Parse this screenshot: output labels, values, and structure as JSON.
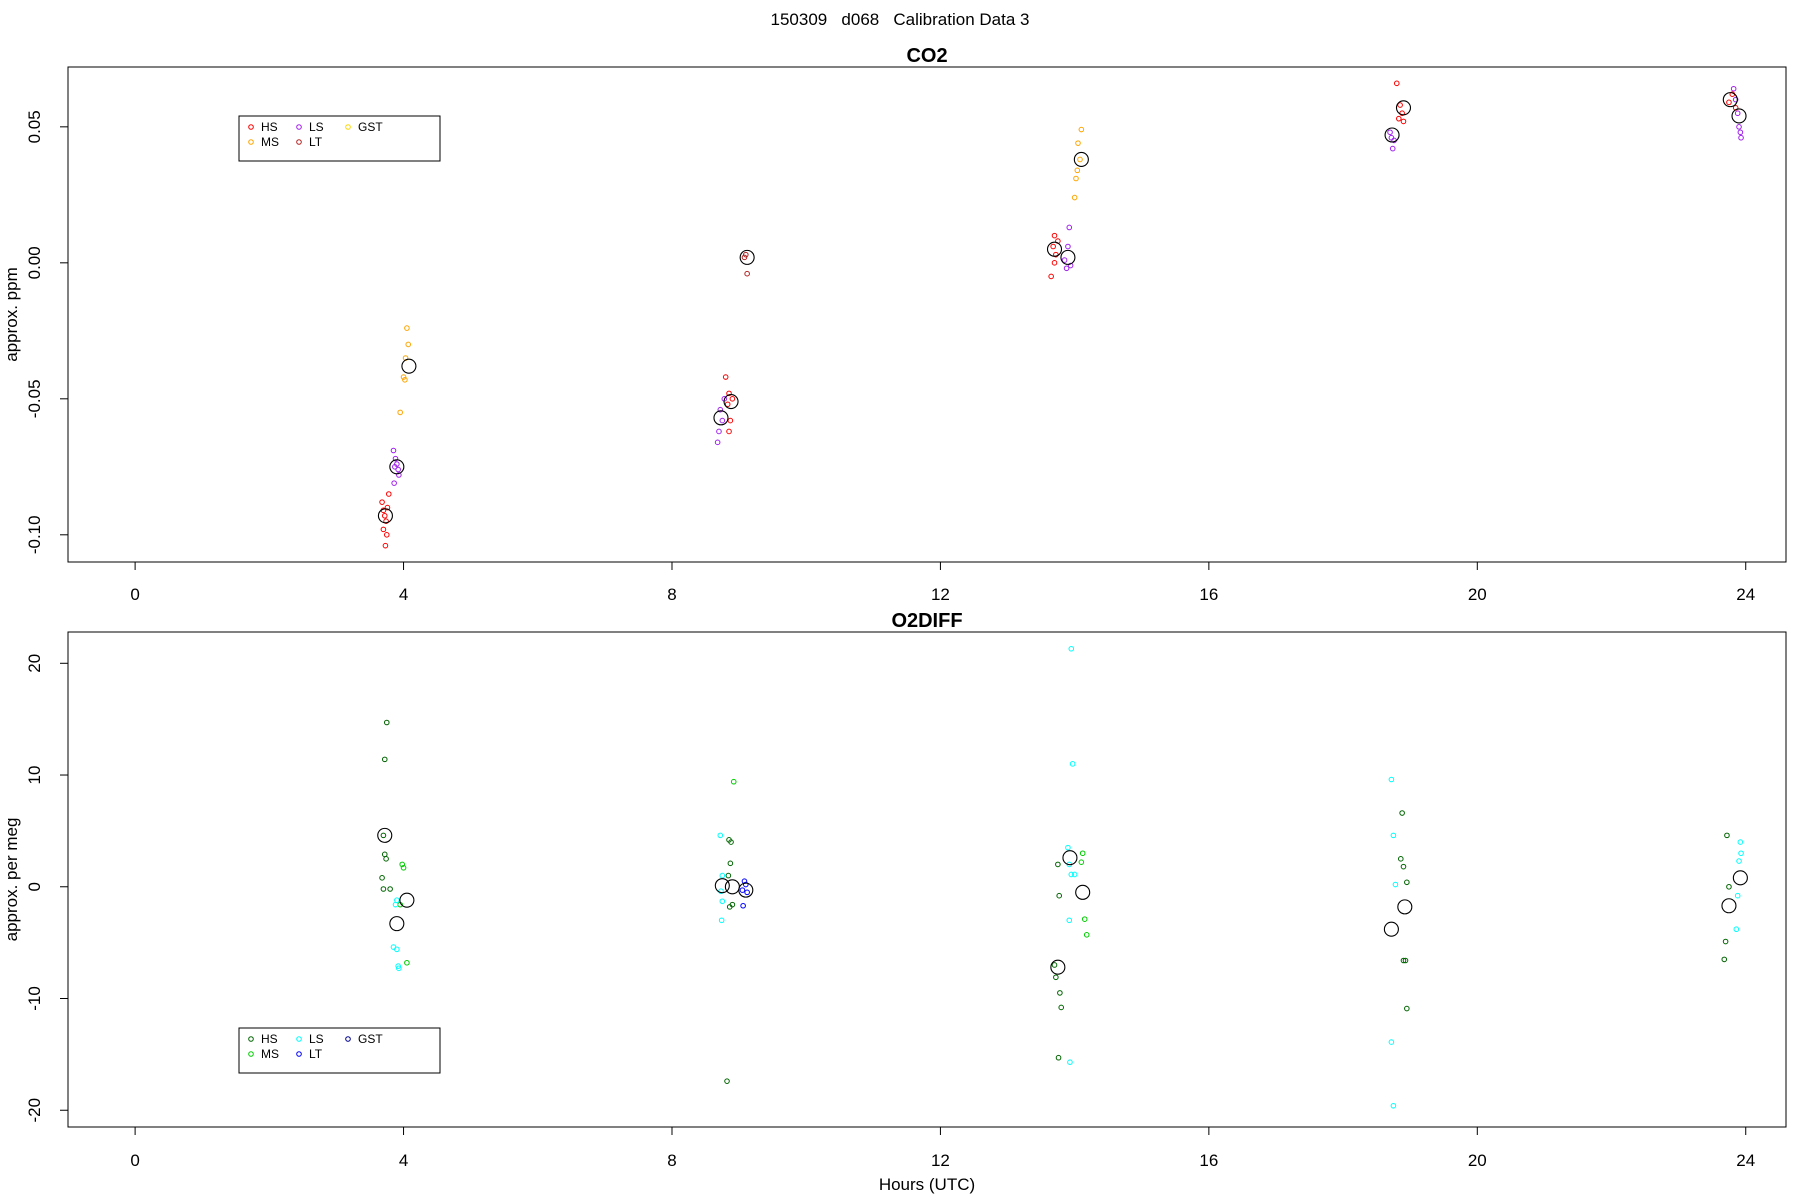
{
  "page": {
    "title": "150309   d068   Calibration Data 3"
  },
  "chart_data": [
    {
      "type": "scatter",
      "title": "CO2",
      "xlabel": "",
      "ylabel": "approx. ppm",
      "xlim": [
        -1,
        24.6
      ],
      "ylim": [
        -0.11,
        0.072
      ],
      "xticks": [
        0,
        4,
        8,
        12,
        16,
        20,
        24
      ],
      "yticks": [
        -0.1,
        -0.05,
        0.0,
        0.05
      ],
      "ytick_labels": [
        "-0.10",
        "-0.05",
        "0.00",
        "0.05"
      ],
      "grid": false,
      "legend": {
        "placement": "top-left",
        "columns": 3,
        "entries": [
          "HS",
          "MS",
          "LS",
          "LT",
          "GST"
        ]
      },
      "series": [
        {
          "name": "HS",
          "color": "#ff0000",
          "marker": "small-circle",
          "points": [
            [
              3.68,
              -0.088
            ],
            [
              3.7,
              -0.091
            ],
            [
              3.72,
              -0.093
            ],
            [
              3.74,
              -0.095
            ],
            [
              3.7,
              -0.098
            ],
            [
              3.75,
              -0.1
            ],
            [
              3.73,
              -0.104
            ],
            [
              3.76,
              -0.09
            ],
            [
              3.78,
              -0.085
            ],
            [
              8.8,
              -0.042
            ],
            [
              8.85,
              -0.048
            ],
            [
              8.9,
              -0.05
            ],
            [
              8.83,
              -0.052
            ],
            [
              8.87,
              -0.058
            ],
            [
              8.85,
              -0.062
            ],
            [
              13.65,
              -0.005
            ],
            [
              13.7,
              0.0
            ],
            [
              13.72,
              0.003
            ],
            [
              13.68,
              0.006
            ],
            [
              13.75,
              0.008
            ],
            [
              13.7,
              0.01
            ],
            [
              18.8,
              0.066
            ],
            [
              18.85,
              0.058
            ],
            [
              18.88,
              0.055
            ],
            [
              18.9,
              0.052
            ],
            [
              18.83,
              0.053
            ],
            [
              23.75,
              0.059
            ],
            [
              23.8,
              0.062
            ],
            [
              23.85,
              0.057
            ]
          ]
        },
        {
          "name": "MS",
          "color": "#ffa500",
          "marker": "small-circle",
          "points": [
            [
              4.05,
              -0.024
            ],
            [
              4.07,
              -0.03
            ],
            [
              4.03,
              -0.035
            ],
            [
              4.0,
              -0.042
            ],
            [
              4.02,
              -0.043
            ],
            [
              3.95,
              -0.055
            ],
            [
              14.1,
              0.049
            ],
            [
              14.05,
              0.044
            ],
            [
              14.08,
              0.038
            ],
            [
              14.02,
              0.031
            ],
            [
              14.04,
              0.034
            ],
            [
              14.0,
              0.024
            ]
          ]
        },
        {
          "name": "LS",
          "color": "#a020f0",
          "marker": "small-circle",
          "points": [
            [
              3.85,
              -0.069
            ],
            [
              3.88,
              -0.072
            ],
            [
              3.9,
              -0.074
            ],
            [
              3.92,
              -0.076
            ],
            [
              3.93,
              -0.078
            ],
            [
              3.87,
              -0.075
            ],
            [
              3.86,
              -0.081
            ],
            [
              8.72,
              -0.054
            ],
            [
              8.78,
              -0.05
            ],
            [
              8.75,
              -0.058
            ],
            [
              8.7,
              -0.062
            ],
            [
              8.68,
              -0.066
            ],
            [
              13.85,
              0.001
            ],
            [
              13.88,
              -0.002
            ],
            [
              13.9,
              0.006
            ],
            [
              13.92,
              0.013
            ],
            [
              13.94,
              -0.001
            ],
            [
              18.7,
              0.048
            ],
            [
              18.72,
              0.046
            ],
            [
              18.74,
              0.042
            ],
            [
              18.76,
              0.045
            ],
            [
              23.82,
              0.064
            ],
            [
              23.85,
              0.06
            ],
            [
              23.88,
              0.055
            ],
            [
              23.9,
              0.05
            ],
            [
              23.92,
              0.048
            ],
            [
              23.93,
              0.046
            ]
          ]
        },
        {
          "name": "LT",
          "color": "#b22222",
          "marker": "small-circle",
          "points": [
            [
              9.1,
              0.003
            ],
            [
              9.12,
              -0.004
            ],
            [
              9.08,
              0.002
            ]
          ]
        },
        {
          "name": "GST",
          "color": "#ffd700",
          "marker": "small-circle",
          "points": []
        },
        {
          "name": "",
          "color": "#000000",
          "marker": "large-circle",
          "points": [
            [
              3.73,
              -0.093
            ],
            [
              3.9,
              -0.075
            ],
            [
              4.08,
              -0.038
            ],
            [
              8.73,
              -0.057
            ],
            [
              8.88,
              -0.051
            ],
            [
              9.12,
              0.002
            ],
            [
              13.7,
              0.005
            ],
            [
              13.9,
              0.002
            ],
            [
              14.1,
              0.038
            ],
            [
              18.73,
              0.047
            ],
            [
              18.9,
              0.057
            ],
            [
              23.77,
              0.06
            ],
            [
              23.9,
              0.054
            ]
          ]
        }
      ]
    },
    {
      "type": "scatter",
      "title": "O2DIFF",
      "xlabel": "Hours (UTC)",
      "ylabel": "approx. per meg",
      "xlim": [
        -1,
        24.6
      ],
      "ylim": [
        -21.5,
        22.8
      ],
      "xticks": [
        0,
        4,
        8,
        12,
        16,
        20,
        24
      ],
      "yticks": [
        -20,
        -10,
        0,
        10,
        20
      ],
      "ytick_labels": [
        "-20",
        "-10",
        "0",
        "10",
        "20"
      ],
      "grid": false,
      "legend": {
        "placement": "bottom-left",
        "columns": 3,
        "entries": [
          "HS",
          "MS",
          "LS",
          "LT",
          "GST"
        ]
      },
      "series": [
        {
          "name": "HS",
          "color": "#006400",
          "marker": "small-circle",
          "points": [
            [
              3.75,
              14.7
            ],
            [
              3.72,
              11.4
            ],
            [
              3.7,
              4.6
            ],
            [
              3.72,
              2.9
            ],
            [
              3.74,
              2.5
            ],
            [
              3.68,
              0.8
            ],
            [
              3.7,
              -0.2
            ],
            [
              3.8,
              -0.2
            ],
            [
              8.85,
              4.2
            ],
            [
              8.88,
              4.0
            ],
            [
              8.87,
              2.1
            ],
            [
              8.84,
              1.0
            ],
            [
              8.86,
              -1.8
            ],
            [
              8.9,
              -1.6
            ],
            [
              8.82,
              -17.4
            ],
            [
              13.75,
              2.0
            ],
            [
              13.77,
              -0.8
            ],
            [
              13.7,
              -7.0
            ],
            [
              13.72,
              -8.1
            ],
            [
              13.78,
              -9.5
            ],
            [
              13.8,
              -10.8
            ],
            [
              13.76,
              -15.3
            ],
            [
              18.88,
              6.6
            ],
            [
              18.86,
              2.5
            ],
            [
              18.9,
              1.8
            ],
            [
              18.95,
              0.4
            ],
            [
              18.9,
              -6.6
            ],
            [
              18.93,
              -6.6
            ],
            [
              18.95,
              -10.9
            ],
            [
              23.72,
              4.6
            ],
            [
              23.75,
              0.0
            ],
            [
              23.7,
              -4.9
            ],
            [
              23.68,
              -6.5
            ]
          ]
        },
        {
          "name": "MS",
          "color": "#00cd00",
          "marker": "small-circle",
          "points": [
            [
              3.98,
              2.0
            ],
            [
              4.0,
              1.7
            ],
            [
              3.95,
              -1.6
            ],
            [
              4.05,
              -6.8
            ],
            [
              8.92,
              9.4
            ],
            [
              14.12,
              3.0
            ],
            [
              14.1,
              2.2
            ],
            [
              14.15,
              -2.9
            ],
            [
              14.18,
              -4.3
            ]
          ]
        },
        {
          "name": "LS",
          "color": "#00ffff",
          "marker": "small-circle",
          "points": [
            [
              3.9,
              -1.2
            ],
            [
              3.88,
              -1.6
            ],
            [
              3.85,
              -5.4
            ],
            [
              3.9,
              -5.6
            ],
            [
              3.92,
              -7.1
            ],
            [
              3.93,
              -7.3
            ],
            [
              8.72,
              4.6
            ],
            [
              8.75,
              1.0
            ],
            [
              8.73,
              -0.4
            ],
            [
              8.74,
              -3.0
            ],
            [
              8.75,
              -1.3
            ],
            [
              13.95,
              21.3
            ],
            [
              13.97,
              11.0
            ],
            [
              13.9,
              3.5
            ],
            [
              13.92,
              2.0
            ],
            [
              13.95,
              1.1
            ],
            [
              14.0,
              1.1
            ],
            [
              13.92,
              -3.0
            ],
            [
              13.93,
              -15.7
            ],
            [
              18.72,
              9.6
            ],
            [
              18.75,
              4.6
            ],
            [
              18.78,
              0.2
            ],
            [
              18.72,
              -13.9
            ],
            [
              18.75,
              -19.6
            ],
            [
              23.92,
              4.0
            ],
            [
              23.93,
              3.0
            ],
            [
              23.9,
              2.3
            ],
            [
              23.88,
              -0.8
            ],
            [
              23.86,
              -3.8
            ]
          ]
        },
        {
          "name": "LT",
          "color": "#0000ff",
          "marker": "small-circle",
          "points": [
            [
              9.08,
              0.5
            ],
            [
              9.1,
              0.2
            ],
            [
              9.05,
              -0.3
            ],
            [
              9.12,
              -0.5
            ],
            [
              9.06,
              -1.7
            ]
          ]
        },
        {
          "name": "GST",
          "color": "#00008b",
          "marker": "small-circle",
          "points": []
        },
        {
          "name": "",
          "color": "#000000",
          "marker": "large-circle",
          "points": [
            [
              3.72,
              4.6
            ],
            [
              3.9,
              -3.3
            ],
            [
              4.05,
              -1.2
            ],
            [
              8.75,
              0.1
            ],
            [
              8.9,
              0.0
            ],
            [
              9.1,
              -0.3
            ],
            [
              13.75,
              -7.2
            ],
            [
              13.93,
              2.6
            ],
            [
              14.12,
              -0.5
            ],
            [
              18.72,
              -3.8
            ],
            [
              18.92,
              -1.8
            ],
            [
              23.75,
              -1.7
            ],
            [
              23.92,
              0.8
            ]
          ]
        }
      ]
    }
  ]
}
